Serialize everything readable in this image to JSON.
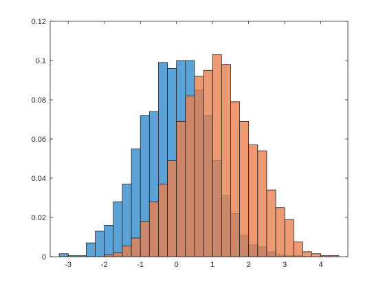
{
  "chart_data": {
    "type": "bar",
    "title": "",
    "xlabel": "",
    "ylabel": "",
    "xlim": [
      -3.5,
      4.75
    ],
    "ylim": [
      0,
      0.12
    ],
    "grid": false,
    "legend": null,
    "x_ticks": [
      -3,
      -2,
      -1,
      0,
      1,
      2,
      3,
      4
    ],
    "y_ticks": [
      0,
      0.02,
      0.04,
      0.06,
      0.08,
      0.1,
      0.12
    ],
    "x_tick_labels": [
      "-3",
      "-2",
      "-1",
      "0",
      "1",
      "2",
      "3",
      "4"
    ],
    "y_tick_labels": [
      "0",
      "0.02",
      "0.04",
      "0.06",
      "0.08",
      "0.1",
      "0.12"
    ],
    "bin_width": 0.25,
    "series": [
      {
        "color": "#5ba3d6",
        "opacity": 1.0,
        "bins": [
          {
            "start": -3.25,
            "value": 0.0015
          },
          {
            "start": -3.0,
            "value": 0.0005
          },
          {
            "start": -2.75,
            "value": 0.0005
          },
          {
            "start": -2.5,
            "value": 0.007
          },
          {
            "start": -2.25,
            "value": 0.013
          },
          {
            "start": -2.0,
            "value": 0.016
          },
          {
            "start": -1.75,
            "value": 0.028
          },
          {
            "start": -1.5,
            "value": 0.037
          },
          {
            "start": -1.25,
            "value": 0.055
          },
          {
            "start": -1.0,
            "value": 0.072
          },
          {
            "start": -0.75,
            "value": 0.074
          },
          {
            "start": -0.5,
            "value": 0.099
          },
          {
            "start": -0.25,
            "value": 0.096
          },
          {
            "start": 0.0,
            "value": 0.1
          },
          {
            "start": 0.25,
            "value": 0.1
          },
          {
            "start": 0.5,
            "value": 0.085
          },
          {
            "start": 0.75,
            "value": 0.072
          },
          {
            "start": 1.0,
            "value": 0.049
          },
          {
            "start": 1.25,
            "value": 0.031
          },
          {
            "start": 1.5,
            "value": 0.022
          },
          {
            "start": 1.75,
            "value": 0.011
          },
          {
            "start": 2.0,
            "value": 0.006
          },
          {
            "start": 2.25,
            "value": 0.005
          },
          {
            "start": 2.5,
            "value": 0.0025
          },
          {
            "start": 2.75,
            "value": 0.001
          },
          {
            "start": 3.0,
            "value": 0.0005
          },
          {
            "start": 3.25,
            "value": 0.0005
          }
        ]
      },
      {
        "color": "#e8804f",
        "opacity": 0.8,
        "bins": [
          {
            "start": -2.0,
            "value": 0.001
          },
          {
            "start": -1.75,
            "value": 0.002
          },
          {
            "start": -1.5,
            "value": 0.0055
          },
          {
            "start": -1.25,
            "value": 0.0095
          },
          {
            "start": -1.0,
            "value": 0.018
          },
          {
            "start": -0.75,
            "value": 0.028
          },
          {
            "start": -0.5,
            "value": 0.037
          },
          {
            "start": -0.25,
            "value": 0.049
          },
          {
            "start": 0.0,
            "value": 0.069
          },
          {
            "start": 0.25,
            "value": 0.082
          },
          {
            "start": 0.5,
            "value": 0.092
          },
          {
            "start": 0.75,
            "value": 0.095
          },
          {
            "start": 1.0,
            "value": 0.103
          },
          {
            "start": 1.25,
            "value": 0.098
          },
          {
            "start": 1.5,
            "value": 0.079
          },
          {
            "start": 1.75,
            "value": 0.069
          },
          {
            "start": 2.0,
            "value": 0.057
          },
          {
            "start": 2.25,
            "value": 0.054
          },
          {
            "start": 2.5,
            "value": 0.034
          },
          {
            "start": 2.75,
            "value": 0.025
          },
          {
            "start": 3.0,
            "value": 0.019
          },
          {
            "start": 3.25,
            "value": 0.0075
          },
          {
            "start": 3.5,
            "value": 0.0025
          },
          {
            "start": 3.75,
            "value": 0.0015
          },
          {
            "start": 4.0,
            "value": 0.0005
          },
          {
            "start": 4.25,
            "value": 0.0005
          }
        ]
      }
    ]
  }
}
